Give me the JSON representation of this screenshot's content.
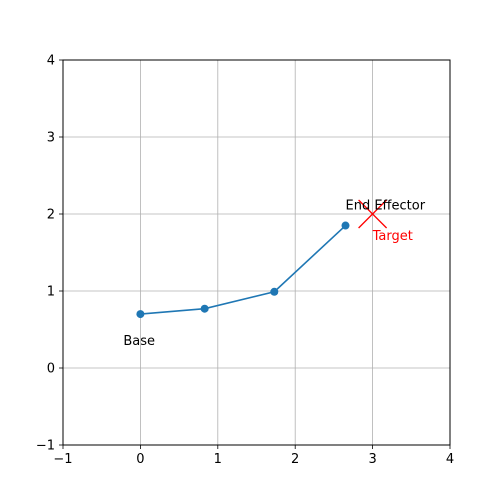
{
  "chart_data": {
    "type": "line",
    "title": "",
    "xlabel": "",
    "ylabel": "",
    "xlim": [
      -1,
      4
    ],
    "ylim": [
      -1,
      4
    ],
    "xticks": [
      "−1",
      "0",
      "1",
      "2",
      "3",
      "4"
    ],
    "yticks": [
      "−1",
      "0",
      "1",
      "2",
      "3",
      "4"
    ],
    "grid": true,
    "series": [
      {
        "x": [
          0,
          0.83,
          1.73,
          2.65
        ],
        "y": [
          0.7,
          0.77,
          0.99,
          1.85
        ],
        "color": "#1f77b4",
        "marker": "circle"
      }
    ],
    "target": {
      "x": 3.0,
      "y": 2.0,
      "marker": "x",
      "color": "#ff0000"
    },
    "annotations": [
      {
        "text": "Base",
        "x": 0,
        "y": 0.7,
        "color": "#000000"
      },
      {
        "text": "End Effector",
        "x": 2.65,
        "y": 1.85,
        "color": "#000000"
      },
      {
        "text": "Target",
        "x": 3.0,
        "y": 2.0,
        "color": "#ff0000"
      }
    ]
  }
}
